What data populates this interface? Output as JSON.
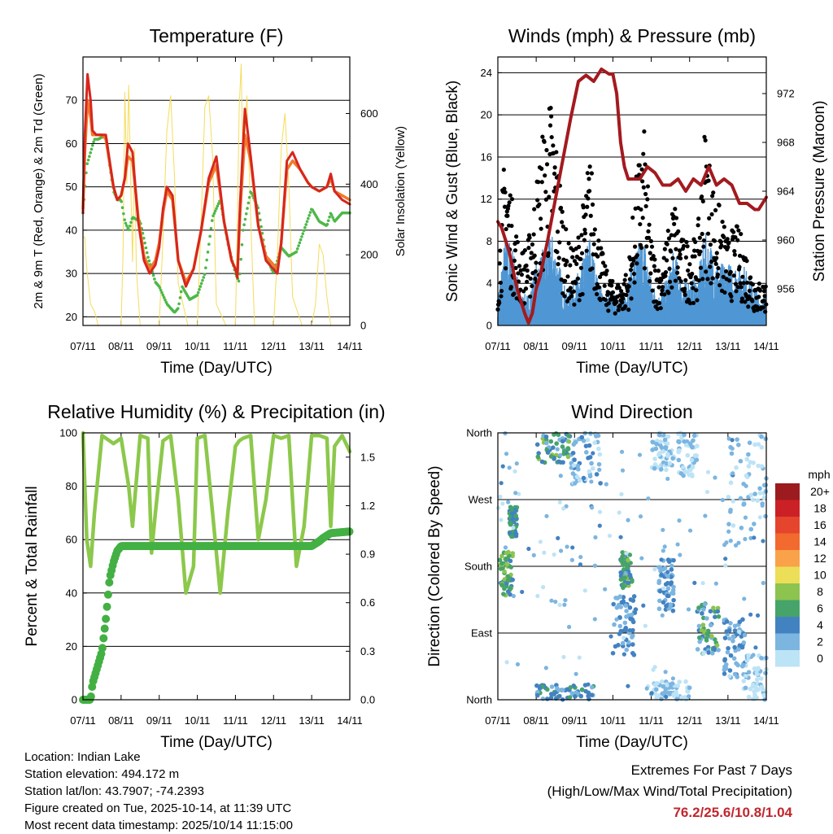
{
  "x_ticks": [
    "07/11",
    "08/11",
    "09/11",
    "10/11",
    "11/11",
    "12/11",
    "13/11",
    "14/11"
  ],
  "chart_data": [
    {
      "type": "line",
      "title": "Temperature (F)",
      "xlabel": "Time (Day/UTC)",
      "ylabel": "2m & 9m T (Red, Orange) & 2m Td (Green)",
      "ylabel_right": "Solar Insolation (Yellow)",
      "xlim": [
        0,
        7
      ],
      "ylim": [
        18,
        80
      ],
      "yticks": [
        20,
        30,
        40,
        50,
        60,
        70
      ],
      "ylim_right": [
        0,
        760
      ],
      "yticks_right": [
        0,
        200,
        400,
        600
      ],
      "colors": {
        "t2m": "#d7261e",
        "t9m": "#f07b2a",
        "td": "#4cb848",
        "solar": "#f5dc5a"
      },
      "series": [
        {
          "name": "2m T",
          "x": [
            0,
            0.05,
            0.12,
            0.2,
            0.25,
            0.35,
            0.5,
            0.6,
            0.8,
            0.9,
            1.0,
            1.1,
            1.18,
            1.3,
            1.45,
            1.6,
            1.75,
            1.9,
            2.0,
            2.1,
            2.2,
            2.35,
            2.5,
            2.7,
            2.9,
            3.1,
            3.3,
            3.5,
            3.7,
            3.9,
            4.0,
            4.05,
            4.12,
            4.25,
            4.4,
            4.6,
            4.8,
            5.0,
            5.1,
            5.2,
            5.35,
            5.5,
            5.7,
            5.9,
            6.0,
            6.2,
            6.4,
            6.5,
            6.6,
            6.8,
            7.0
          ],
          "y": [
            44,
            62,
            76,
            70,
            63,
            62,
            62,
            62,
            50,
            47,
            48,
            52,
            60,
            58,
            42,
            33,
            30,
            32,
            36,
            45,
            50,
            48,
            33,
            27,
            31,
            40,
            52,
            57,
            42,
            33,
            31,
            29,
            46,
            68,
            57,
            41,
            33,
            31,
            30,
            37,
            56,
            58,
            54,
            51,
            50,
            49,
            50,
            53,
            49,
            47,
            46
          ]
        },
        {
          "name": "9m T",
          "x": [
            0,
            0.05,
            0.12,
            0.2,
            0.25,
            0.35,
            0.5,
            0.6,
            0.8,
            0.9,
            1.0,
            1.1,
            1.18,
            1.3,
            1.45,
            1.6,
            1.75,
            1.9,
            2.0,
            2.1,
            2.2,
            2.35,
            2.5,
            2.7,
            2.9,
            3.1,
            3.3,
            3.5,
            3.7,
            3.9,
            4.0,
            4.05,
            4.12,
            4.25,
            4.4,
            4.6,
            4.8,
            5.0,
            5.1,
            5.2,
            5.35,
            5.5,
            5.7,
            5.9,
            6.0,
            6.2,
            6.4,
            6.5,
            6.6,
            6.8,
            7.0
          ],
          "y": [
            45,
            58,
            70,
            66,
            62,
            62,
            62,
            61,
            50,
            47,
            48,
            52,
            57,
            56,
            43,
            34,
            31,
            33,
            37,
            44,
            49,
            47,
            33,
            28,
            31,
            40,
            51,
            55,
            42,
            33,
            31,
            30,
            44,
            62,
            56,
            41,
            34,
            32,
            31,
            37,
            54,
            56,
            54,
            51,
            50,
            49,
            50,
            52,
            49,
            48,
            47
          ]
        },
        {
          "name": "2m Td",
          "x": [
            0,
            0.1,
            0.2,
            0.3,
            0.4,
            0.6,
            0.7,
            0.8,
            0.9,
            1.0,
            1.1,
            1.2,
            1.3,
            1.5,
            1.7,
            1.9,
            2.0,
            2.2,
            2.4,
            2.5,
            2.6,
            2.8,
            3.0,
            3.2,
            3.4,
            3.6,
            3.8,
            4.0,
            4.1,
            4.2,
            4.4,
            4.6,
            4.8,
            5.0,
            5.2,
            5.4,
            5.6,
            5.8,
            6.0,
            6.2,
            6.4,
            6.5,
            6.6,
            6.8,
            7.0
          ],
          "y": [
            44,
            55,
            58,
            61,
            61,
            62,
            55,
            49,
            47,
            47,
            42,
            40,
            43,
            42,
            34,
            28,
            27,
            23,
            21,
            22,
            27,
            24,
            25,
            30,
            43,
            47,
            37,
            30,
            28,
            40,
            49,
            45,
            34,
            30,
            36,
            34,
            35,
            40,
            45,
            42,
            41,
            44,
            42,
            44,
            44
          ]
        },
        {
          "name": "Solar",
          "axis": "right",
          "x": [
            0,
            0.05,
            0.1,
            0.2,
            0.3,
            0.4,
            0.5,
            0.75,
            1.0,
            1.05,
            1.1,
            1.15,
            1.2,
            1.25,
            1.3,
            1.35,
            1.4,
            1.5,
            1.75,
            2.0,
            2.1,
            2.2,
            2.3,
            2.4,
            2.5,
            2.75,
            3.0,
            3.1,
            3.2,
            3.3,
            3.4,
            3.5,
            3.75,
            4.0,
            4.05,
            4.1,
            4.15,
            4.2,
            4.3,
            4.4,
            4.5,
            4.75,
            5.0,
            5.1,
            5.2,
            5.3,
            5.4,
            5.5,
            5.75,
            6.0,
            6.1,
            6.2,
            6.3,
            6.4,
            6.5,
            6.75,
            7.0
          ],
          "y": [
            250,
            250,
            160,
            60,
            40,
            0,
            0,
            0,
            0,
            200,
            660,
            400,
            680,
            420,
            180,
            500,
            160,
            0,
            0,
            0,
            250,
            550,
            650,
            420,
            120,
            0,
            0,
            300,
            620,
            650,
            480,
            60,
            0,
            0,
            300,
            620,
            740,
            420,
            650,
            300,
            0,
            0,
            0,
            200,
            500,
            600,
            400,
            80,
            0,
            0,
            60,
            230,
            200,
            80,
            0,
            0,
            0
          ]
        }
      ]
    },
    {
      "type": "scatter",
      "title": "Winds (mph) & Pressure (mb)",
      "xlabel": "Time (Day/UTC)",
      "ylabel": "Sonic Wind & Gust (Blue, Black)",
      "ylabel_right": "Station Pressure (Maroon)",
      "xlim": [
        0,
        7
      ],
      "ylim": [
        0,
        25.5
      ],
      "yticks": [
        0,
        4,
        8,
        12,
        16,
        20,
        24
      ],
      "ylim_right": [
        953,
        975
      ],
      "yticks_right": [
        956,
        960,
        964,
        968,
        972
      ],
      "colors": {
        "wind": "#4f97d4",
        "gust": "#000000",
        "pressure": "#a31a1f"
      },
      "wind_profile": {
        "x": [
          0,
          0.2,
          0.4,
          0.6,
          0.8,
          1.0,
          1.2,
          1.4,
          1.6,
          1.8,
          2.0,
          2.2,
          2.4,
          2.6,
          2.8,
          3.0,
          3.2,
          3.4,
          3.6,
          3.8,
          4.0,
          4.2,
          4.4,
          4.6,
          4.8,
          5.0,
          5.2,
          5.4,
          5.6,
          5.8,
          6.0,
          6.2,
          6.4,
          6.6,
          6.8,
          7.0
        ],
        "y": [
          2,
          6,
          5,
          2,
          2,
          4,
          5,
          6,
          4,
          2,
          3,
          4,
          6,
          3,
          2,
          2,
          2,
          3,
          5,
          6,
          3,
          2,
          3,
          5,
          3,
          3,
          3,
          6,
          5,
          4,
          4,
          4,
          4,
          3,
          2,
          2
        ]
      },
      "gust_profile": {
        "x": [
          0,
          0.2,
          0.4,
          0.6,
          0.8,
          1.0,
          1.2,
          1.4,
          1.6,
          1.8,
          2.0,
          2.2,
          2.4,
          2.6,
          2.8,
          3.0,
          3.2,
          3.4,
          3.6,
          3.8,
          4.0,
          4.2,
          4.4,
          4.6,
          4.8,
          5.0,
          5.2,
          5.4,
          5.6,
          5.8,
          6.0,
          6.2,
          6.4,
          6.6,
          6.8,
          7.0
        ],
        "y": [
          4,
          13,
          8,
          5,
          6,
          10,
          14,
          16,
          11,
          6,
          5,
          8,
          12,
          7,
          4,
          3,
          3,
          4,
          10,
          14,
          6,
          4,
          6,
          9,
          6,
          6,
          6,
          14,
          10,
          8,
          6,
          7,
          6,
          4,
          3,
          3
        ]
      },
      "pressure": {
        "x": [
          0,
          0.1,
          0.3,
          0.5,
          0.7,
          0.8,
          0.9,
          1.0,
          1.1,
          1.3,
          1.6,
          1.9,
          2.1,
          2.3,
          2.5,
          2.7,
          2.9,
          3.0,
          3.1,
          3.2,
          3.3,
          3.4,
          3.5,
          3.7,
          3.9,
          4.1,
          4.3,
          4.5,
          4.7,
          4.9,
          5.1,
          5.3,
          5.5,
          5.7,
          5.9,
          6.1,
          6.3,
          6.5,
          6.7,
          6.8,
          6.9,
          7.0
        ],
        "y": [
          961.5,
          961,
          959,
          956,
          954,
          953.2,
          954,
          956,
          957,
          960,
          965,
          970,
          973,
          973.5,
          973,
          974,
          973.6,
          973.6,
          972,
          968,
          966,
          965,
          965,
          965,
          966,
          965.5,
          964.5,
          964.5,
          965,
          964,
          965,
          964.5,
          966,
          964.5,
          965,
          964.5,
          963,
          963,
          962.5,
          962.5,
          963,
          963.5
        ]
      }
    },
    {
      "type": "line",
      "title": "Relative Humidity (%) & Precipitation (in)",
      "xlabel": "Time (Day/UTC)",
      "ylabel": "Percent & Total Rainfall",
      "xlim": [
        0,
        7
      ],
      "ylim": [
        0,
        100
      ],
      "yticks": [
        0,
        20,
        40,
        60,
        80,
        100
      ],
      "ylim_right": [
        0,
        1.65
      ],
      "yticks_right": [
        0.0,
        0.3,
        0.6,
        0.9,
        1.2,
        1.5
      ],
      "yticks_right_labels": [
        "0.0",
        "0.3",
        "0.6",
        "0.9",
        "1.2",
        "1.5"
      ],
      "colors": {
        "rh": "#8cc84b",
        "precip": "#43b043"
      },
      "series": [
        {
          "name": "RH",
          "x": [
            0,
            0.05,
            0.1,
            0.2,
            0.3,
            0.5,
            0.7,
            0.8,
            1.0,
            1.2,
            1.3,
            1.5,
            1.7,
            1.8,
            1.9,
            2.1,
            2.3,
            2.5,
            2.7,
            2.9,
            3.0,
            3.2,
            3.4,
            3.6,
            3.8,
            4.0,
            4.1,
            4.2,
            4.4,
            4.6,
            4.8,
            5.0,
            5.2,
            5.4,
            5.6,
            5.8,
            6.0,
            6.2,
            6.4,
            6.5,
            6.6,
            6.8,
            7.0
          ],
          "y": [
            100,
            80,
            60,
            50,
            70,
            99,
            97,
            96,
            98,
            80,
            65,
            99,
            98,
            55,
            70,
            97,
            99,
            75,
            40,
            50,
            98,
            99,
            70,
            40,
            70,
            95,
            97,
            98,
            99,
            60,
            75,
            99,
            98,
            99,
            50,
            65,
            99,
            99,
            98,
            65,
            95,
            99,
            93
          ]
        },
        {
          "name": "Total Precip",
          "axis": "right",
          "x": [
            0,
            0.2,
            0.25,
            0.35,
            0.5,
            0.6,
            0.7,
            0.8,
            0.9,
            1.0,
            1.3,
            2.0,
            3.0,
            4.0,
            5.0,
            5.5,
            6.0,
            6.2,
            6.3,
            6.5,
            7.0
          ],
          "y": [
            0,
            0,
            0.1,
            0.18,
            0.3,
            0.5,
            0.75,
            0.85,
            0.92,
            0.95,
            0.95,
            0.95,
            0.95,
            0.95,
            0.95,
            0.95,
            0.95,
            0.98,
            1.0,
            1.03,
            1.04
          ]
        }
      ]
    },
    {
      "type": "scatter",
      "title": "Wind Direction",
      "xlabel": "Time (Day/UTC)",
      "ylabel": "Direction (Colored By Speed)",
      "xlim": [
        0,
        7
      ],
      "ylim": [
        0,
        360
      ],
      "yticks": [
        0,
        90,
        180,
        270,
        360
      ],
      "ytick_labels": [
        "North",
        "East",
        "South",
        "West",
        "North"
      ],
      "legend_title": "mph",
      "legend_labels": [
        "20+",
        "18",
        "16",
        "14",
        "12",
        "10",
        "8",
        "6",
        "4",
        "2",
        "0"
      ],
      "legend_colors": [
        "#9c1b1e",
        "#cc2027",
        "#e4452c",
        "#f26a2d",
        "#f9a24a",
        "#ecde56",
        "#8dc34f",
        "#46a46a",
        "#4382c1",
        "#7cb5e0",
        "#bde3f6"
      ],
      "clusters": [
        {
          "x": [
            0.05,
            0.4
          ],
          "y": [
            140,
            200
          ],
          "speed": [
            4,
            8
          ]
        },
        {
          "x": [
            0.3,
            0.5
          ],
          "y": [
            220,
            260
          ],
          "speed": [
            4,
            6
          ]
        },
        {
          "x": [
            1.0,
            1.9
          ],
          "y": [
            320,
            360
          ],
          "speed": [
            2,
            8
          ]
        },
        {
          "x": [
            1.9,
            2.7
          ],
          "y": [
            290,
            360
          ],
          "speed": [
            0,
            4
          ]
        },
        {
          "x": [
            3.2,
            3.5
          ],
          "y": [
            150,
            200
          ],
          "speed": [
            4,
            8
          ]
        },
        {
          "x": [
            3.0,
            3.6
          ],
          "y": [
            60,
            140
          ],
          "speed": [
            2,
            4
          ]
        },
        {
          "x": [
            4.0,
            4.6
          ],
          "y": [
            310,
            360
          ],
          "speed": [
            0,
            2
          ]
        },
        {
          "x": [
            4.2,
            4.6
          ],
          "y": [
            120,
            190
          ],
          "speed": [
            2,
            4
          ]
        },
        {
          "x": [
            4.7,
            5.2
          ],
          "y": [
            300,
            360
          ],
          "speed": [
            0,
            2
          ]
        },
        {
          "x": [
            5.2,
            5.8
          ],
          "y": [
            60,
            130
          ],
          "speed": [
            2,
            8
          ]
        },
        {
          "x": [
            5.9,
            6.5
          ],
          "y": [
            30,
            110
          ],
          "speed": [
            2,
            4
          ]
        },
        {
          "x": [
            6.0,
            7.0
          ],
          "y": [
            230,
            360
          ],
          "speed": [
            0,
            2
          ]
        },
        {
          "x": [
            1.0,
            2.5
          ],
          "y": [
            0,
            20
          ],
          "speed": [
            2,
            6
          ]
        },
        {
          "x": [
            4.0,
            5.0
          ],
          "y": [
            0,
            25
          ],
          "speed": [
            0,
            2
          ]
        },
        {
          "x": [
            6.4,
            7.0
          ],
          "y": [
            0,
            60
          ],
          "speed": [
            0,
            2
          ]
        }
      ]
    }
  ],
  "info": {
    "location": "Location: Indian Lake",
    "elevation": "Station elevation: 494.172 m",
    "latlon": "Station lat/lon: 43.7907; -74.2393",
    "created": "Figure created on Tue, 2025-10-14, at 11:39 UTC",
    "recent": "Most recent data timestamp: 2025/10/14 11:15:00"
  },
  "extremes": {
    "heading": "Extremes For Past 7 Days",
    "subheading": "(High/Low/Max Wind/Total Precipitation)",
    "values": "76.2/25.6/10.8/1.04"
  }
}
